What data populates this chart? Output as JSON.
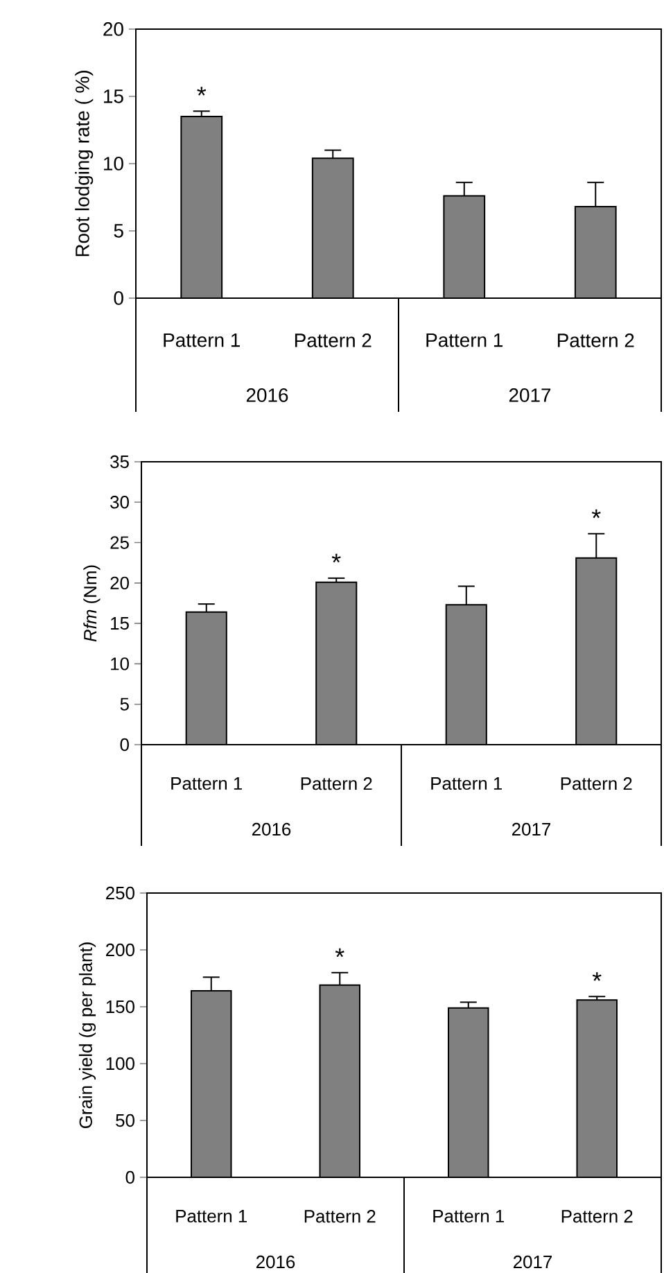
{
  "chart_data": [
    {
      "type": "bar",
      "ylabel": "Root lodging rate ( %)",
      "categories": [
        "Pattern 1",
        "Pattern 2",
        "Pattern 1",
        "Pattern 2"
      ],
      "values": [
        13.5,
        10.4,
        7.6,
        6.8
      ],
      "errors": [
        [
          13.5,
          13.9
        ],
        [
          10.4,
          11.0
        ],
        [
          7.6,
          8.6
        ],
        [
          6.8,
          8.6
        ]
      ],
      "value_labels": [
        "*",
        null,
        null,
        null
      ],
      "color": "#808080",
      "ylim": [
        0,
        20
      ],
      "yticks": [
        0,
        5,
        10,
        15,
        20
      ],
      "annotations": [
        "2016",
        "2017"
      ]
    },
    {
      "type": "bar",
      "ylabel": "*Rfm* (Nm)",
      "categories": [
        "Pattern 1",
        "Pattern 2",
        "Pattern 1",
        "Pattern 2"
      ],
      "values": [
        16.4,
        20.1,
        17.3,
        23.1
      ],
      "errors": [
        [
          16.4,
          17.4
        ],
        [
          20.1,
          20.6
        ],
        [
          17.3,
          19.6
        ],
        [
          23.1,
          26.1
        ]
      ],
      "value_labels": [
        null,
        "*",
        null,
        "*"
      ],
      "color": "#808080",
      "ylim": [
        0,
        35
      ],
      "yticks": [
        0,
        5,
        10,
        15,
        20,
        25,
        30,
        35
      ],
      "annotations": [
        "2016",
        "2017"
      ]
    },
    {
      "type": "bar",
      "ylabel": "Grain yield (g per plant)",
      "categories": [
        "Pattern 1",
        "Pattern 2",
        "Pattern 1",
        "Pattern 2"
      ],
      "values": [
        164,
        169,
        149,
        156
      ],
      "errors": [
        [
          164,
          176
        ],
        [
          169,
          180
        ],
        [
          149,
          154
        ],
        [
          156,
          159
        ]
      ],
      "value_labels": [
        null,
        "*",
        null,
        "*"
      ],
      "color": "#808080",
      "ylim": [
        0,
        250
      ],
      "yticks": [
        0,
        50,
        100,
        150,
        200,
        250
      ],
      "annotations": [
        "2016",
        "2017"
      ]
    }
  ]
}
